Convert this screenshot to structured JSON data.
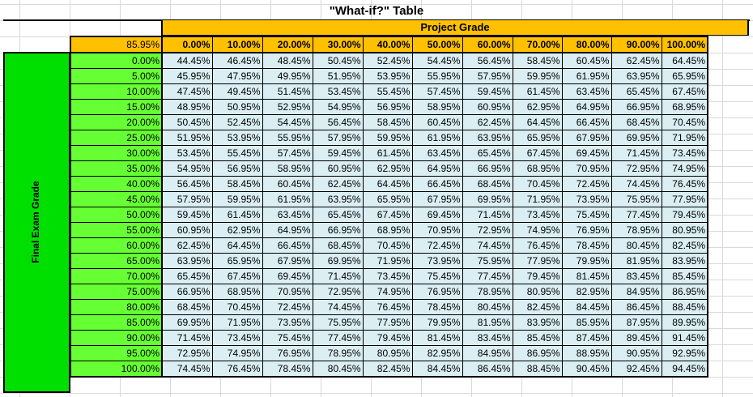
{
  "title": "\"What-if?\" Table",
  "column_group_label": "Project Grade",
  "row_group_label": "Final Exam Grade",
  "corner_value": "85.95%",
  "column_headers": [
    "0.00%",
    "10.00%",
    "20.00%",
    "30.00%",
    "40.00%",
    "50.00%",
    "60.00%",
    "70.00%",
    "80.00%",
    "90.00%",
    "100.00%"
  ],
  "rows": [
    {
      "label": "0.00%",
      "values": [
        "44.45%",
        "46.45%",
        "48.45%",
        "50.45%",
        "52.45%",
        "54.45%",
        "56.45%",
        "58.45%",
        "60.45%",
        "62.45%",
        "64.45%"
      ]
    },
    {
      "label": "5.00%",
      "values": [
        "45.95%",
        "47.95%",
        "49.95%",
        "51.95%",
        "53.95%",
        "55.95%",
        "57.95%",
        "59.95%",
        "61.95%",
        "63.95%",
        "65.95%"
      ]
    },
    {
      "label": "10.00%",
      "values": [
        "47.45%",
        "49.45%",
        "51.45%",
        "53.45%",
        "55.45%",
        "57.45%",
        "59.45%",
        "61.45%",
        "63.45%",
        "65.45%",
        "67.45%"
      ]
    },
    {
      "label": "15.00%",
      "values": [
        "48.95%",
        "50.95%",
        "52.95%",
        "54.95%",
        "56.95%",
        "58.95%",
        "60.95%",
        "62.95%",
        "64.95%",
        "66.95%",
        "68.95%"
      ]
    },
    {
      "label": "20.00%",
      "values": [
        "50.45%",
        "52.45%",
        "54.45%",
        "56.45%",
        "58.45%",
        "60.45%",
        "62.45%",
        "64.45%",
        "66.45%",
        "68.45%",
        "70.45%"
      ]
    },
    {
      "label": "25.00%",
      "values": [
        "51.95%",
        "53.95%",
        "55.95%",
        "57.95%",
        "59.95%",
        "61.95%",
        "63.95%",
        "65.95%",
        "67.95%",
        "69.95%",
        "71.95%"
      ]
    },
    {
      "label": "30.00%",
      "values": [
        "53.45%",
        "55.45%",
        "57.45%",
        "59.45%",
        "61.45%",
        "63.45%",
        "65.45%",
        "67.45%",
        "69.45%",
        "71.45%",
        "73.45%"
      ]
    },
    {
      "label": "35.00%",
      "values": [
        "54.95%",
        "56.95%",
        "58.95%",
        "60.95%",
        "62.95%",
        "64.95%",
        "66.95%",
        "68.95%",
        "70.95%",
        "72.95%",
        "74.95%"
      ]
    },
    {
      "label": "40.00%",
      "values": [
        "56.45%",
        "58.45%",
        "60.45%",
        "62.45%",
        "64.45%",
        "66.45%",
        "68.45%",
        "70.45%",
        "72.45%",
        "74.45%",
        "76.45%"
      ]
    },
    {
      "label": "45.00%",
      "values": [
        "57.95%",
        "59.95%",
        "61.95%",
        "63.95%",
        "65.95%",
        "67.95%",
        "69.95%",
        "71.95%",
        "73.95%",
        "75.95%",
        "77.95%"
      ]
    },
    {
      "label": "50.00%",
      "values": [
        "59.45%",
        "61.45%",
        "63.45%",
        "65.45%",
        "67.45%",
        "69.45%",
        "71.45%",
        "73.45%",
        "75.45%",
        "77.45%",
        "79.45%"
      ]
    },
    {
      "label": "55.00%",
      "values": [
        "60.95%",
        "62.95%",
        "64.95%",
        "66.95%",
        "68.95%",
        "70.95%",
        "72.95%",
        "74.95%",
        "76.95%",
        "78.95%",
        "80.95%"
      ]
    },
    {
      "label": "60.00%",
      "values": [
        "62.45%",
        "64.45%",
        "66.45%",
        "68.45%",
        "70.45%",
        "72.45%",
        "74.45%",
        "76.45%",
        "78.45%",
        "80.45%",
        "82.45%"
      ]
    },
    {
      "label": "65.00%",
      "values": [
        "63.95%",
        "65.95%",
        "67.95%",
        "69.95%",
        "71.95%",
        "73.95%",
        "75.95%",
        "77.95%",
        "79.95%",
        "81.95%",
        "83.95%"
      ]
    },
    {
      "label": "70.00%",
      "values": [
        "65.45%",
        "67.45%",
        "69.45%",
        "71.45%",
        "73.45%",
        "75.45%",
        "77.45%",
        "79.45%",
        "81.45%",
        "83.45%",
        "85.45%"
      ]
    },
    {
      "label": "75.00%",
      "values": [
        "66.95%",
        "68.95%",
        "70.95%",
        "72.95%",
        "74.95%",
        "76.95%",
        "78.95%",
        "80.95%",
        "82.95%",
        "84.95%",
        "86.95%"
      ]
    },
    {
      "label": "80.00%",
      "values": [
        "68.45%",
        "70.45%",
        "72.45%",
        "74.45%",
        "76.45%",
        "78.45%",
        "80.45%",
        "82.45%",
        "84.45%",
        "86.45%",
        "88.45%"
      ]
    },
    {
      "label": "85.00%",
      "values": [
        "69.95%",
        "71.95%",
        "73.95%",
        "75.95%",
        "77.95%",
        "79.95%",
        "81.95%",
        "83.95%",
        "85.95%",
        "87.95%",
        "89.95%"
      ]
    },
    {
      "label": "90.00%",
      "values": [
        "71.45%",
        "73.45%",
        "75.45%",
        "77.45%",
        "79.45%",
        "81.45%",
        "83.45%",
        "85.45%",
        "87.45%",
        "89.45%",
        "91.45%"
      ]
    },
    {
      "label": "95.00%",
      "values": [
        "72.95%",
        "74.95%",
        "76.95%",
        "78.95%",
        "80.95%",
        "82.95%",
        "84.95%",
        "86.95%",
        "88.95%",
        "90.95%",
        "92.95%"
      ]
    },
    {
      "label": "100.00%",
      "values": [
        "74.45%",
        "76.45%",
        "78.45%",
        "80.45%",
        "82.45%",
        "84.45%",
        "86.45%",
        "88.45%",
        "90.45%",
        "92.45%",
        "94.45%"
      ]
    }
  ],
  "colors": {
    "header_orange": "#ffc000",
    "side_green": "#00e000",
    "row_header_green": "#66ff33",
    "cell_blue": "#daeef3"
  }
}
